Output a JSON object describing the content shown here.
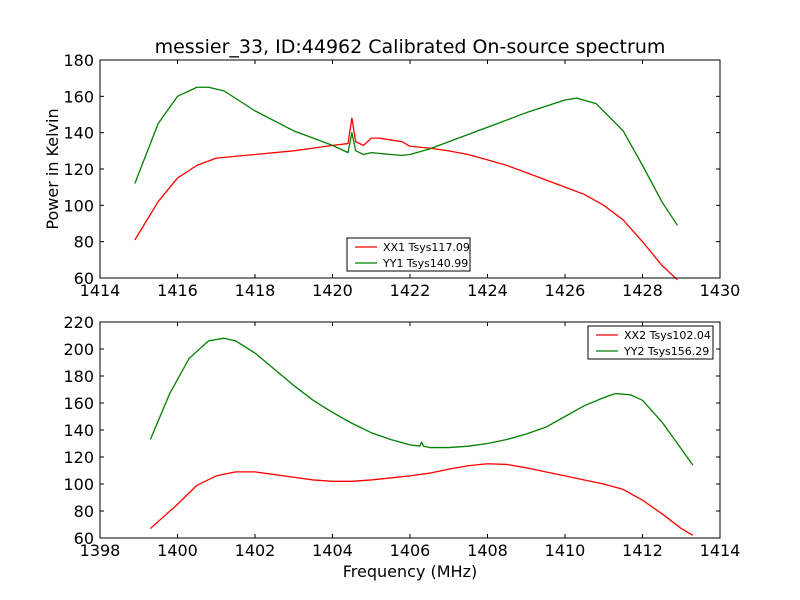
{
  "figure": {
    "title": "messier_33, ID:44962 Calibrated On-source spectrum",
    "ylabel": "Power in Kelvin",
    "xlabel": "Frequency (MHz)"
  },
  "chart_data": [
    {
      "type": "line",
      "xlim": [
        1414,
        1430
      ],
      "ylim": [
        60,
        180
      ],
      "xticks": [
        "1414",
        "1416",
        "1418",
        "1420",
        "1422",
        "1424",
        "1426",
        "1428",
        "1430"
      ],
      "yticks": [
        "60",
        "80",
        "100",
        "120",
        "140",
        "160",
        "180"
      ],
      "legend_position": "bottom-center",
      "series": [
        {
          "name": "XX1 Tsys117.09",
          "color": "#ff0000",
          "x": [
            1414.9,
            1415.5,
            1416,
            1416.5,
            1417,
            1418,
            1419,
            1419.5,
            1420,
            1420.4,
            1420.5,
            1420.6,
            1420.8,
            1421,
            1421.2,
            1421.5,
            1421.8,
            1422,
            1422.5,
            1423,
            1423.5,
            1424,
            1424.5,
            1425,
            1425.5,
            1426,
            1426.5,
            1427,
            1427.5,
            1428,
            1428.5,
            1428.9
          ],
          "values": [
            81,
            102,
            115,
            122,
            126,
            128,
            130,
            131.5,
            133,
            134,
            148,
            135,
            133,
            137,
            137,
            136,
            135,
            132.5,
            131.5,
            130,
            128,
            125,
            122,
            118,
            114,
            110,
            106,
            100,
            92,
            80,
            67,
            59
          ]
        },
        {
          "name": "YY1 Tsys140.99",
          "color": "#008000",
          "x": [
            1414.9,
            1415.5,
            1416,
            1416.5,
            1416.8,
            1417.2,
            1418,
            1419,
            1419.5,
            1420,
            1420.4,
            1420.5,
            1420.6,
            1420.8,
            1421,
            1421.5,
            1421.8,
            1422,
            1422.5,
            1423,
            1424,
            1425,
            1426,
            1426.3,
            1426.8,
            1427.5,
            1428,
            1428.5,
            1428.9
          ],
          "values": [
            112,
            145,
            160,
            165,
            165,
            163,
            152,
            141,
            137,
            133,
            129,
            140,
            130,
            128,
            129,
            128,
            127.5,
            128,
            131,
            135,
            143,
            151,
            158,
            159,
            156,
            141,
            122,
            102,
            89
          ]
        }
      ]
    },
    {
      "type": "line",
      "xlim": [
        1398,
        1414
      ],
      "ylim": [
        60,
        220
      ],
      "xticks": [
        "1398",
        "1400",
        "1402",
        "1404",
        "1406",
        "1408",
        "1410",
        "1412",
        "1414"
      ],
      "yticks": [
        "60",
        "80",
        "100",
        "120",
        "140",
        "160",
        "180",
        "200",
        "220"
      ],
      "legend_position": "top-right",
      "series": [
        {
          "name": "XX2 Tsys102.04",
          "color": "#ff0000",
          "x": [
            1399.3,
            1400,
            1400.5,
            1401,
            1401.5,
            1402,
            1402.5,
            1403,
            1403.5,
            1404,
            1404.5,
            1405,
            1405.5,
            1406,
            1406.5,
            1407,
            1407.5,
            1408,
            1408.5,
            1409,
            1409.5,
            1410,
            1410.5,
            1411,
            1411.5,
            1412,
            1412.5,
            1413,
            1413.3
          ],
          "values": [
            67,
            85,
            99,
            106,
            109,
            109,
            107,
            105,
            103,
            102,
            102,
            103,
            104.5,
            106,
            108,
            111,
            113.5,
            115,
            114.5,
            112,
            109,
            106,
            103,
            100,
            96,
            88,
            78,
            67,
            62
          ]
        },
        {
          "name": "YY2 Tsys156.29",
          "color": "#008000",
          "x": [
            1399.3,
            1399.8,
            1400.3,
            1400.8,
            1401.2,
            1401.5,
            1402,
            1402.5,
            1403,
            1403.5,
            1404,
            1404.5,
            1405,
            1405.5,
            1406,
            1406.25,
            1406.3,
            1406.35,
            1406.5,
            1407,
            1407.5,
            1408,
            1408.5,
            1409,
            1409.5,
            1410,
            1410.5,
            1411,
            1411.3,
            1411.7,
            1412,
            1412.5,
            1413,
            1413.3
          ],
          "values": [
            133,
            167,
            193,
            206,
            208,
            206,
            197,
            185,
            173,
            162,
            153,
            145,
            138,
            133,
            129,
            128,
            131,
            128,
            127,
            127,
            128,
            130,
            133,
            137,
            142,
            150,
            158,
            164,
            167,
            166,
            162,
            146,
            126,
            114
          ]
        }
      ]
    }
  ]
}
